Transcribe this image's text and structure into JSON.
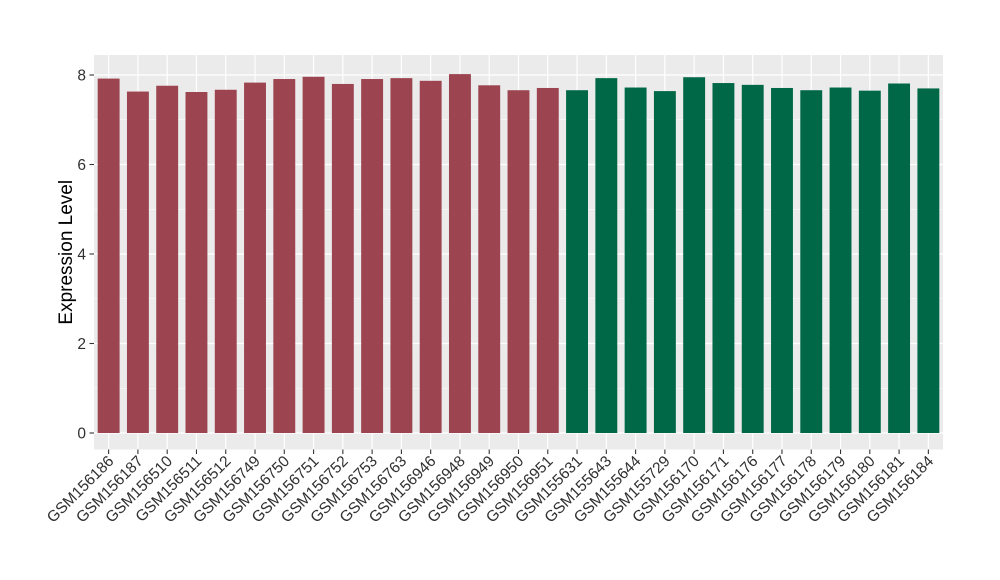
{
  "chart_data": {
    "type": "bar",
    "title": "",
    "xlabel": "",
    "ylabel": "Expression Level",
    "categories": [
      "GSM156186",
      "GSM156187",
      "GSM156510",
      "GSM156511",
      "GSM156512",
      "GSM156749",
      "GSM156750",
      "GSM156751",
      "GSM156752",
      "GSM156753",
      "GSM156763",
      "GSM156946",
      "GSM156948",
      "GSM156949",
      "GSM156950",
      "GSM156951",
      "GSM155631",
      "GSM155643",
      "GSM155644",
      "GSM155729",
      "GSM156170",
      "GSM156171",
      "GSM156176",
      "GSM156177",
      "GSM156178",
      "GSM156179",
      "GSM156180",
      "GSM156181",
      "GSM156184"
    ],
    "values": [
      7.92,
      7.63,
      7.76,
      7.62,
      7.67,
      7.83,
      7.91,
      7.96,
      7.8,
      7.91,
      7.93,
      7.87,
      8.02,
      7.77,
      7.66,
      7.71,
      7.66,
      7.93,
      7.72,
      7.64,
      7.95,
      7.82,
      7.78,
      7.71,
      7.66,
      7.72,
      7.65,
      7.81,
      7.7
    ],
    "color_groups": [
      {
        "color": "#9C4450",
        "start_index": 0,
        "end_index": 15
      },
      {
        "color": "#006747",
        "start_index": 16,
        "end_index": 28
      }
    ],
    "yticks": [
      "0",
      "2",
      "4",
      "6",
      "8"
    ],
    "ytick_values": [
      0,
      2,
      4,
      6,
      8
    ],
    "minor_ytick_values": [
      1,
      3,
      5,
      7
    ],
    "ylim": [
      0,
      8.45
    ],
    "x_tick_angle": 45,
    "legend": "none",
    "grid": "on",
    "panel_bg": "#EBEBEB",
    "grid_color": "#FFFFFF",
    "tick_mark_color": "#333333",
    "tick_label_color": "#303030",
    "axis_title_color": "#000000",
    "background": "#FFFFFF"
  }
}
